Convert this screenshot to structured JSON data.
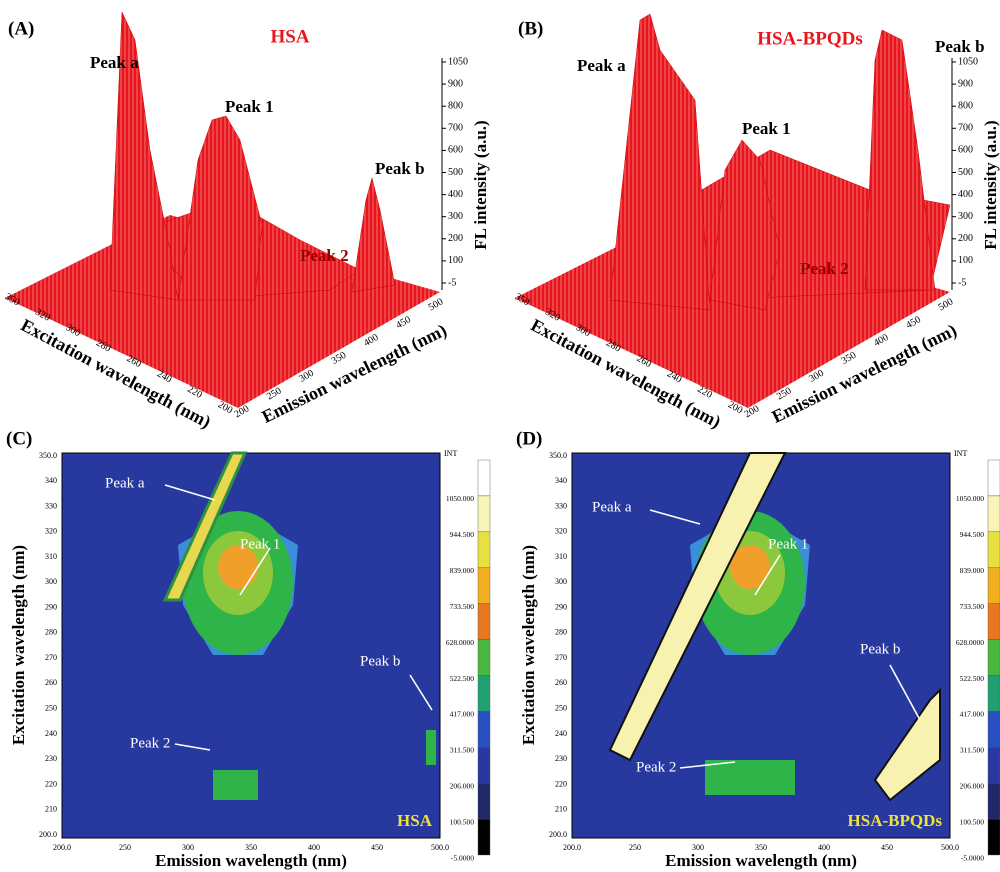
{
  "surface_panels": [
    {
      "letter": "(A)",
      "title": "HSA",
      "peaks": [
        "Peak a",
        "Peak 1",
        "Peak b",
        "Peak 2"
      ],
      "z_label": "FL intensity (a.u.)",
      "z_ticks": [
        "1050",
        "900",
        "800",
        "700",
        "600",
        "500",
        "400",
        "300",
        "200",
        "100",
        "-5"
      ],
      "y_label": "Excitation wavelength (nm)",
      "y_ticks": [
        "350",
        "320",
        "300",
        "280",
        "260",
        "240",
        "220",
        "200"
      ],
      "x_label": "Emission wavelength (nm)",
      "x_ticks": [
        "200",
        "250",
        "300",
        "350",
        "400",
        "450",
        "500"
      ]
    },
    {
      "letter": "(B)",
      "title": "HSA-BPQDs",
      "peaks": [
        "Peak a",
        "Peak 1",
        "Peak b",
        "Peak 2"
      ],
      "z_label": "FL intensity (a.u.)",
      "z_ticks": [
        "1050",
        "900",
        "800",
        "700",
        "600",
        "500",
        "400",
        "300",
        "200",
        "100",
        "-5"
      ],
      "y_label": "Excitation wavelength (nm)",
      "y_ticks": [
        "350",
        "320",
        "300",
        "280",
        "260",
        "240",
        "220",
        "200"
      ],
      "x_label": "Emission wavelength (nm)",
      "x_ticks": [
        "200",
        "250",
        "300",
        "350",
        "400",
        "450",
        "500"
      ]
    }
  ],
  "contour_panels": [
    {
      "letter": "(C)",
      "title": "HSA",
      "peaks": [
        "Peak a",
        "Peak 1",
        "Peak b",
        "Peak 2"
      ],
      "y_label": "Excitation wavelength (nm)",
      "y_ticks": [
        "350.0",
        "340",
        "330",
        "320",
        "310",
        "300",
        "290",
        "280",
        "270",
        "260",
        "250",
        "240",
        "230",
        "220",
        "210",
        "200.0"
      ],
      "x_label": "Emission wavelength (nm)",
      "x_ticks": [
        "200.0",
        "250",
        "300",
        "350",
        "400",
        "450",
        "500.0"
      ],
      "colorbar_title": "INT",
      "colorbar_ticks": [
        "1050.000",
        "944.500",
        "839.000",
        "733.500",
        "628.0000",
        "522.500",
        "417.000",
        "311.500",
        "206.000",
        "100.500",
        "-5.0000"
      ]
    },
    {
      "letter": "(D)",
      "title": "HSA-BPQDs",
      "peaks": [
        "Peak a",
        "Peak 1",
        "Peak b",
        "Peak 2"
      ],
      "y_label": "Excitation wavelength (nm)",
      "y_ticks": [
        "350.0",
        "340",
        "330",
        "320",
        "310",
        "300",
        "290",
        "280",
        "270",
        "260",
        "250",
        "240",
        "230",
        "220",
        "210",
        "200.0"
      ],
      "x_label": "Emission wavelength (nm)",
      "x_ticks": [
        "200.0",
        "250",
        "300",
        "350",
        "400",
        "450",
        "500.0"
      ],
      "colorbar_title": "INT",
      "colorbar_ticks": [
        "1050.000",
        "944.500",
        "839.000",
        "733.500",
        "628.0000",
        "522.500",
        "417.000",
        "311.500",
        "206.000",
        "100.500",
        "-5.0000"
      ]
    }
  ]
}
